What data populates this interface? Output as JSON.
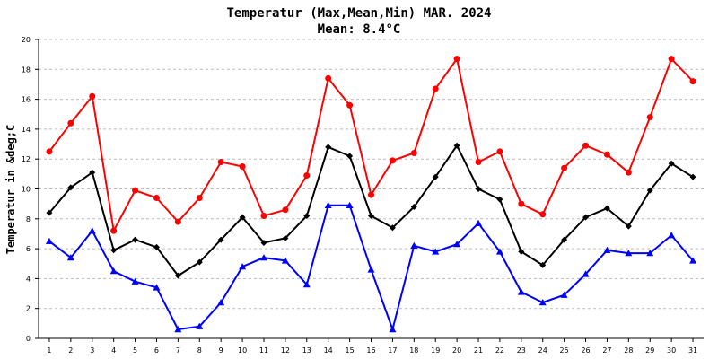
{
  "chart_data": {
    "type": "line",
    "title": "Temperatur (Max,Mean,Min) MAR. 2024",
    "subtitle": "Mean: 8.4°C",
    "xlabel": "",
    "ylabel": "Temperatur in &deg;C",
    "x": [
      1,
      2,
      3,
      4,
      5,
      6,
      7,
      8,
      9,
      10,
      11,
      12,
      13,
      14,
      15,
      16,
      17,
      18,
      19,
      20,
      21,
      22,
      23,
      24,
      25,
      26,
      27,
      28,
      29,
      30,
      31
    ],
    "ylim": [
      0,
      20
    ],
    "yticks": [
      0,
      2,
      4,
      6,
      8,
      10,
      12,
      14,
      16,
      18,
      20
    ],
    "grid": true,
    "series": [
      {
        "color": "#ff0000",
        "marker": "circle",
        "values": [
          12.5,
          14.4,
          16.2,
          7.2,
          9.9,
          9.4,
          7.8,
          9.4,
          11.8,
          11.5,
          8.2,
          8.6,
          10.9,
          17.4,
          15.6,
          9.6,
          11.9,
          12.4,
          16.7,
          18.7,
          11.8,
          12.5,
          9.0,
          8.3,
          11.4,
          12.9,
          12.3,
          11.1,
          14.8,
          18.7,
          17.2
        ]
      },
      {
        "color": "#000000",
        "marker": "diamond",
        "values": [
          8.4,
          10.1,
          11.1,
          5.9,
          6.6,
          6.1,
          4.2,
          5.1,
          6.6,
          8.1,
          6.4,
          6.7,
          8.2,
          12.8,
          12.2,
          8.2,
          7.4,
          8.8,
          10.8,
          12.9,
          10.0,
          9.3,
          5.8,
          4.9,
          6.6,
          8.1,
          8.7,
          7.5,
          9.9,
          11.7,
          10.8
        ]
      },
      {
        "color": "#0000ff",
        "marker": "triangle",
        "values": [
          6.5,
          5.4,
          7.2,
          4.5,
          3.8,
          3.4,
          0.6,
          0.8,
          2.4,
          4.8,
          5.4,
          5.2,
          3.6,
          8.9,
          8.9,
          4.6,
          0.6,
          6.2,
          5.8,
          6.3,
          7.7,
          5.8,
          3.1,
          2.4,
          2.9,
          4.3,
          5.9,
          5.7,
          5.7,
          6.9,
          5.2
        ]
      }
    ]
  }
}
